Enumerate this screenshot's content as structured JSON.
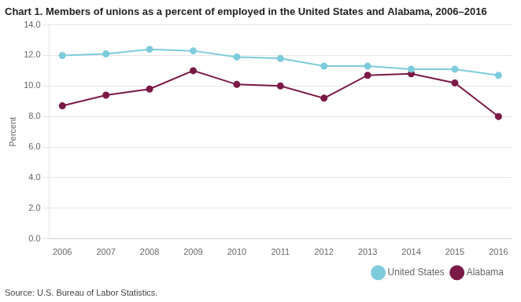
{
  "chart_data": {
    "type": "line",
    "title": "Chart 1. Members of unions as a percent of employed in the United States and Alabama, 2006–2016",
    "ylabel": "Percent",
    "source": "Source: U.S. Bureau of Labor Statistics.",
    "x": [
      2006,
      2007,
      2008,
      2009,
      2010,
      2011,
      2012,
      2013,
      2014,
      2015,
      2016
    ],
    "series": [
      {
        "name": "United States",
        "color": "#7ecbdc",
        "marker": "circle",
        "values": [
          12.0,
          12.1,
          12.4,
          12.3,
          11.9,
          11.8,
          11.3,
          11.3,
          11.1,
          11.1,
          10.7
        ]
      },
      {
        "name": "Alabama",
        "color": "#7b1a47",
        "marker": "circle",
        "values": [
          8.7,
          9.4,
          9.8,
          11.0,
          10.1,
          10.0,
          9.2,
          10.7,
          10.8,
          10.2,
          8.0
        ]
      }
    ],
    "xlim": [
      2005.7,
      2016.3
    ],
    "xticks": [
      2006,
      2007,
      2008,
      2009,
      2010,
      2011,
      2012,
      2013,
      2014,
      2015,
      2016
    ],
    "ylim": [
      0,
      14.0
    ],
    "yticks": [
      {
        "value": 0.0,
        "label": "0.0"
      },
      {
        "value": 2.0,
        "label": "2.0"
      },
      {
        "value": 4.0,
        "label": "4.0"
      },
      {
        "value": 6.0,
        "label": "6.0"
      },
      {
        "value": 8.0,
        "label": "8.0"
      },
      {
        "value": 10.0,
        "label": "10.0"
      },
      {
        "value": 12.0,
        "label": "12.0"
      },
      {
        "value": 14.0,
        "label": "14.0"
      }
    ],
    "grid": "y",
    "legend": "lower right"
  }
}
